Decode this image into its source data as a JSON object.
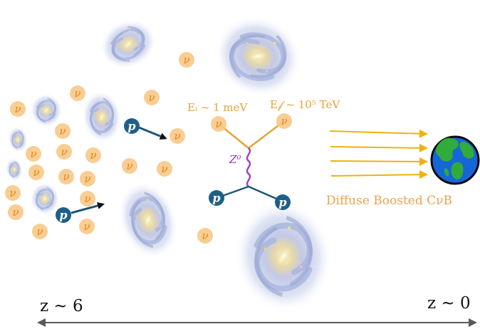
{
  "labels": {
    "initial_energy": "Eᵢ ~ 1 meV",
    "final_energy": "E𝒻 ~ 10⁵ TeV",
    "boson": "Z⁰",
    "diffuse": "Diffuse Boosted CνB",
    "high_redshift": "z ~ 6",
    "low_redshift": "z ~ 0",
    "neutrino_symbol": "ν",
    "proton_symbol": "p"
  },
  "icons": {
    "galaxy": "spiral-galaxy-icon",
    "earth": "earth-globe-icon",
    "proton": "proton-icon",
    "neutrino": "neutrino-icon"
  },
  "colors": {
    "neutrino_fill": "#f8c98a",
    "neutrino_text": "#e28a14",
    "proton_fill": "#1f5f86",
    "proton_arrow": "#1b5876",
    "boson_line": "#9d46c4",
    "arrow_yellow": "#efb10d",
    "earth_water": "#1666d8",
    "earth_land": "#31ab3b"
  }
}
